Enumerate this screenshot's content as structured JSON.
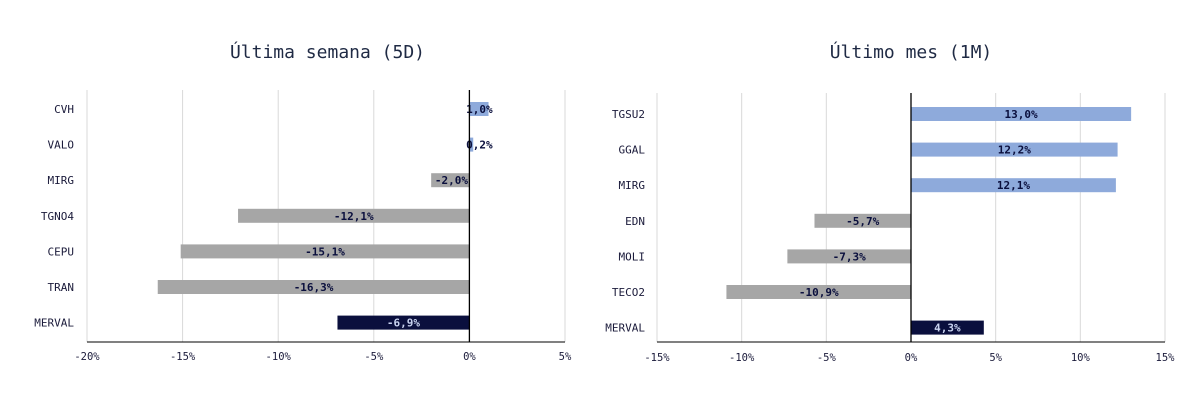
{
  "colors": {
    "positive": "#8eaadb",
    "negative": "#a6a6a6",
    "index": "#0a0f3d",
    "grid": "#d9d9d9",
    "axis": "#000000",
    "label_dark": "#0a0f3d",
    "label_light": "#c9d3f0"
  },
  "chart_data": [
    {
      "type": "bar",
      "orientation": "horizontal",
      "title": "Última semana (5D)",
      "categories": [
        "CVH",
        "VALO",
        "MIRG",
        "TGNO4",
        "CEPU",
        "TRAN",
        "MERVAL"
      ],
      "values": [
        1.0,
        0.2,
        -2.0,
        -12.1,
        -15.1,
        -16.3,
        -6.9
      ],
      "value_labels": [
        "1,0%",
        "0,2%",
        "-2,0%",
        "-12,1%",
        "-15,1%",
        "-16,3%",
        "-6,9%"
      ],
      "highlight": "MERVAL",
      "xlim": [
        -20,
        5
      ],
      "xticks": [
        -20,
        -15,
        -10,
        -5,
        0,
        5
      ],
      "xtick_labels": [
        "-20%",
        "-15%",
        "-10%",
        "-5%",
        "0%",
        "5%"
      ],
      "grid": true
    },
    {
      "type": "bar",
      "orientation": "horizontal",
      "title": "Último mes (1M)",
      "categories": [
        "TGSU2",
        "GGAL",
        "MIRG",
        "EDN",
        "MOLI",
        "TECO2",
        "MERVAL"
      ],
      "values": [
        13.0,
        12.2,
        12.1,
        -5.7,
        -7.3,
        -10.9,
        4.3
      ],
      "value_labels": [
        "13,0%",
        "12,2%",
        "12,1%",
        "-5,7%",
        "-7,3%",
        "-10,9%",
        "4,3%"
      ],
      "highlight": "MERVAL",
      "xlim": [
        -15,
        15
      ],
      "xticks": [
        -15,
        -10,
        -5,
        0,
        5,
        10,
        15
      ],
      "xtick_labels": [
        "-15%",
        "-10%",
        "-5%",
        "0%",
        "5%",
        "10%",
        "15%"
      ],
      "grid": true
    }
  ]
}
